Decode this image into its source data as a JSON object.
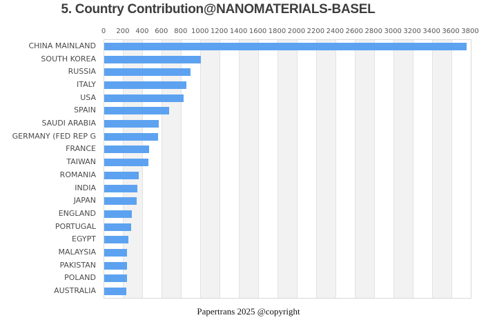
{
  "footer": {
    "text": "Papertrans 2025 @copyright"
  },
  "chart_data": {
    "type": "bar",
    "orientation": "horizontal",
    "title": "5. Country Contribution@NANOMATERIALS-BASEL",
    "categories": [
      "CHINA MAINLAND",
      "SOUTH KOREA",
      "RUSSIA",
      "ITALY",
      "USA",
      "SPAIN",
      "SAUDI ARABIA",
      "GERMANY (FED REP G",
      "FRANCE",
      "TAIWAN",
      "ROMANIA",
      "INDIA",
      "JAPAN",
      "ENGLAND",
      "PORTUGAL",
      "EGYPT",
      "MALAYSIA",
      "PAKISTAN",
      "POLAND",
      "AUSTRALIA"
    ],
    "values": [
      3760,
      1000,
      895,
      855,
      820,
      672,
      566,
      556,
      466,
      458,
      358,
      342,
      337,
      284,
      282,
      253,
      237,
      234,
      235,
      227
    ],
    "xlabel": "",
    "ylabel": "",
    "xlim": [
      0,
      3800
    ],
    "x_tick_interval": 200,
    "x_ticks": [
      0,
      200,
      400,
      600,
      800,
      1000,
      1200,
      1400,
      1600,
      1800,
      2000,
      2200,
      2400,
      2600,
      2800,
      3000,
      3200,
      3400,
      3600,
      3800
    ],
    "x_axis_position": "top",
    "grid": "vertical-bands-alternating",
    "legend": null,
    "bar_color": "#5da2f0",
    "band_color": "#f2f2f2",
    "gridline_color": "#e2e2e2",
    "border_color": "#d9d9d9",
    "title_color": "#3d3d3d",
    "label_color": "#4a4a4a"
  }
}
